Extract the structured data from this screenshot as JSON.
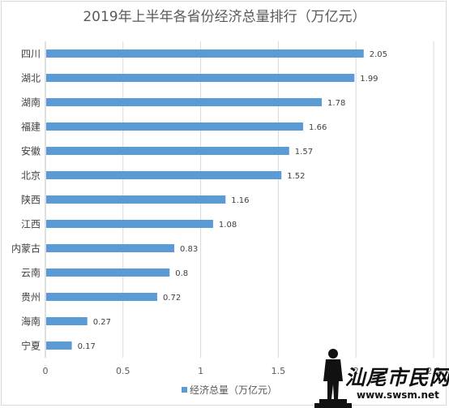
{
  "chart_data": {
    "type": "bar",
    "orientation": "horizontal",
    "title": "2019年上半年各省份经济总量排行（万亿元）",
    "categories": [
      "四川",
      "湖北",
      "湖南",
      "福建",
      "安徽",
      "北京",
      "陕西",
      "江西",
      "内蒙古",
      "云南",
      "贵州",
      "海南",
      "宁夏"
    ],
    "series": [
      {
        "name": "经济总量（万亿元）",
        "values": [
          2.05,
          1.99,
          1.78,
          1.66,
          1.57,
          1.52,
          1.16,
          1.08,
          0.83,
          0.8,
          0.72,
          0.27,
          0.17
        ],
        "labels": [
          "2.05",
          "1.99",
          "1.78",
          "1.66",
          "1.57",
          "1.52",
          "1.16",
          "1.08",
          "0.83",
          "0.8",
          "0.72",
          "0.27",
          "0.17"
        ],
        "color": "#5b9bd5"
      }
    ],
    "xlim": [
      0,
      2.5
    ],
    "xticks": [
      "0",
      "0.5",
      "1",
      "1.5",
      "2",
      "2.5"
    ],
    "xgrid": true,
    "legend_position": "bottom",
    "data_labels": true
  },
  "watermark": {
    "text": "汕尾市民网",
    "url": "www.swsm.net"
  }
}
